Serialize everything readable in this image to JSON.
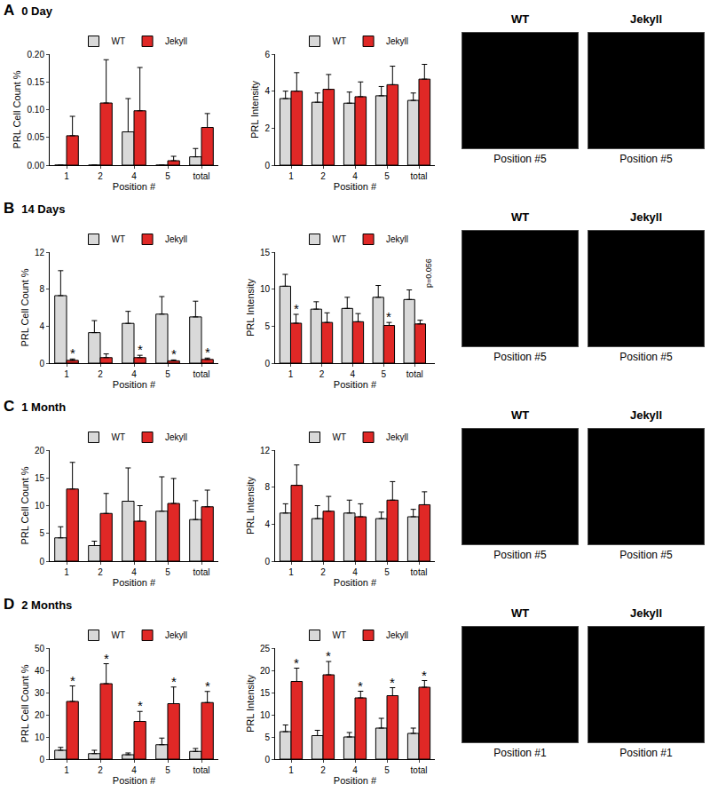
{
  "panels": [
    {
      "label": "A",
      "title": "0 Day",
      "images": [
        {
          "title": "WT",
          "caption": "Position #5"
        },
        {
          "title": "Jekyll",
          "caption": "Position #5"
        }
      ]
    },
    {
      "label": "B",
      "title": "14 Days",
      "images": [
        {
          "title": "WT",
          "caption": "Position #5"
        },
        {
          "title": "Jekyll",
          "caption": "Position #5"
        }
      ]
    },
    {
      "label": "C",
      "title": "1 Month",
      "images": [
        {
          "title": "WT",
          "caption": "Position #5"
        },
        {
          "title": "Jekyll",
          "caption": "Position #5"
        }
      ]
    },
    {
      "label": "D",
      "title": "2 Months",
      "images": [
        {
          "title": "WT",
          "caption": "Position #1"
        },
        {
          "title": "Jekyll",
          "caption": "Position #1"
        }
      ]
    }
  ],
  "chart_data": [
    {
      "type": "bar",
      "x_label": "Position #",
      "y_label": "PRL Cell Count %",
      "categories": [
        "1",
        "2",
        "4",
        "5",
        "total"
      ],
      "legend": "top",
      "ylim": [
        0,
        0.2
      ],
      "yticks": [
        {
          "value": 0,
          "label": "0.00"
        },
        {
          "value": 0.05,
          "label": "0.05"
        },
        {
          "value": 0.1,
          "label": "0.10"
        },
        {
          "value": 0.15,
          "label": "0.15"
        },
        {
          "value": 0.2,
          "label": "0.20"
        }
      ],
      "series": [
        {
          "name": "WT",
          "color": "#d9d9d9",
          "values": [
            0,
            0,
            0.06,
            0,
            0.015
          ],
          "errors": [
            0,
            0,
            0.06,
            0,
            0.015
          ]
        },
        {
          "name": "Jekyll",
          "color": "#e02826",
          "values": [
            0.053,
            0.112,
            0.098,
            0.008,
            0.068
          ],
          "errors": [
            0.035,
            0.078,
            0.078,
            0.008,
            0.025
          ]
        }
      ],
      "annotations": []
    },
    {
      "type": "bar",
      "x_label": "Position #",
      "y_label": "PRL Intensity",
      "categories": [
        "1",
        "2",
        "4",
        "5",
        "total"
      ],
      "legend": "top",
      "ylim": [
        0,
        6
      ],
      "yticks": [
        0,
        2,
        4,
        6
      ],
      "series": [
        {
          "name": "WT",
          "color": "#d9d9d9",
          "values": [
            3.6,
            3.4,
            3.35,
            3.75,
            3.5
          ],
          "errors": [
            0.4,
            0.5,
            0.6,
            0.5,
            0.4
          ]
        },
        {
          "name": "Jekyll",
          "color": "#e02826",
          "values": [
            4.0,
            4.1,
            3.7,
            4.35,
            4.65
          ],
          "errors": [
            1.0,
            0.8,
            0.8,
            1.0,
            0.8
          ]
        }
      ],
      "annotations": []
    },
    {
      "type": "bar",
      "x_label": "Position #",
      "y_label": "PRL Cell Count %",
      "categories": [
        "1",
        "2",
        "4",
        "5",
        "total"
      ],
      "legend": "top",
      "ylim": [
        0,
        12
      ],
      "yticks": [
        0,
        4,
        8,
        12
      ],
      "series": [
        {
          "name": "WT",
          "color": "#d9d9d9",
          "values": [
            7.3,
            3.3,
            4.3,
            5.3,
            5.0
          ],
          "errors": [
            2.7,
            1.3,
            1.3,
            1.9,
            1.7
          ]
        },
        {
          "name": "Jekyll",
          "color": "#e02826",
          "values": [
            0.3,
            0.6,
            0.6,
            0.25,
            0.4
          ],
          "errors": [
            0.15,
            0.4,
            0.25,
            0.1,
            0.15
          ]
        }
      ],
      "annotations": [
        {
          "category": "1",
          "series": "Jekyll",
          "text": "*"
        },
        {
          "category": "4",
          "series": "Jekyll",
          "text": "*"
        },
        {
          "category": "5",
          "series": "Jekyll",
          "text": "*"
        },
        {
          "category": "total",
          "series": "Jekyll",
          "text": "*"
        }
      ]
    },
    {
      "type": "bar",
      "x_label": "Position #",
      "y_label": "PRL Intensity",
      "categories": [
        "1",
        "2",
        "4",
        "5",
        "total"
      ],
      "legend": "top",
      "ylim": [
        0,
        15
      ],
      "yticks": [
        0,
        5,
        10,
        15
      ],
      "series": [
        {
          "name": "WT",
          "color": "#d9d9d9",
          "values": [
            10.4,
            7.3,
            7.4,
            8.9,
            8.6
          ],
          "errors": [
            1.6,
            1.0,
            1.5,
            1.6,
            1.3
          ]
        },
        {
          "name": "Jekyll",
          "color": "#e02826",
          "values": [
            5.4,
            5.5,
            5.6,
            5.1,
            5.3
          ],
          "errors": [
            1.2,
            1.3,
            1.1,
            0.4,
            0.5
          ]
        }
      ],
      "annotations": [
        {
          "category": "1",
          "series": "Jekyll",
          "text": "*"
        },
        {
          "category": "5",
          "series": "Jekyll",
          "text": "*"
        },
        {
          "category": "total",
          "series": "Jekyll",
          "text": "p=0.056"
        }
      ]
    },
    {
      "type": "bar",
      "x_label": "Position #",
      "y_label": "PRL Cell Count %",
      "categories": [
        "1",
        "2",
        "4",
        "5",
        "total"
      ],
      "legend": "top",
      "ylim": [
        0,
        20
      ],
      "yticks": [
        0,
        5,
        10,
        15,
        20
      ],
      "series": [
        {
          "name": "WT",
          "color": "#d9d9d9",
          "values": [
            4.2,
            2.8,
            10.8,
            9.0,
            7.5
          ],
          "errors": [
            2.0,
            0.8,
            6.0,
            6.2,
            3.4
          ]
        },
        {
          "name": "Jekyll",
          "color": "#e02826",
          "values": [
            13.0,
            8.6,
            7.2,
            10.4,
            9.8
          ],
          "errors": [
            4.8,
            3.6,
            2.8,
            4.5,
            3.0
          ]
        }
      ],
      "annotations": []
    },
    {
      "type": "bar",
      "x_label": "Position #",
      "y_label": "PRL Intensity",
      "categories": [
        "1",
        "2",
        "4",
        "5",
        "total"
      ],
      "legend": "top",
      "ylim": [
        0,
        12
      ],
      "yticks": [
        0,
        4,
        8,
        12
      ],
      "series": [
        {
          "name": "WT",
          "color": "#d9d9d9",
          "values": [
            5.2,
            4.6,
            5.2,
            4.6,
            4.8
          ],
          "errors": [
            1.0,
            1.4,
            1.4,
            0.7,
            0.8
          ]
        },
        {
          "name": "Jekyll",
          "color": "#e02826",
          "values": [
            8.2,
            5.4,
            4.8,
            6.6,
            6.1
          ],
          "errors": [
            2.2,
            1.6,
            1.4,
            2.0,
            1.4
          ]
        }
      ],
      "annotations": []
    },
    {
      "type": "bar",
      "x_label": "Position #",
      "y_label": "PRL Cell Count %",
      "categories": [
        "1",
        "2",
        "4",
        "5",
        "total"
      ],
      "legend": "top",
      "ylim": [
        0,
        50
      ],
      "yticks": [
        0,
        10,
        20,
        30,
        40,
        50
      ],
      "series": [
        {
          "name": "WT",
          "color": "#d9d9d9",
          "values": [
            4.0,
            2.5,
            2.0,
            6.5,
            3.5
          ],
          "errors": [
            1.3,
            1.5,
            0.8,
            3.0,
            1.3
          ]
        },
        {
          "name": "Jekyll",
          "color": "#e02826",
          "values": [
            26.0,
            34.0,
            17.0,
            25.0,
            25.5
          ],
          "errors": [
            7.0,
            9.0,
            4.5,
            7.5,
            5.0
          ]
        }
      ],
      "annotations": [
        {
          "category": "1",
          "series": "Jekyll",
          "text": "*"
        },
        {
          "category": "2",
          "series": "Jekyll",
          "text": "*"
        },
        {
          "category": "4",
          "series": "Jekyll",
          "text": "*"
        },
        {
          "category": "5",
          "series": "Jekyll",
          "text": "*"
        },
        {
          "category": "total",
          "series": "Jekyll",
          "text": "*"
        }
      ]
    },
    {
      "type": "bar",
      "x_label": "Position #",
      "y_label": "PRL Intensity",
      "categories": [
        "1",
        "2",
        "4",
        "5",
        "total"
      ],
      "legend": "top",
      "ylim": [
        0,
        25
      ],
      "yticks": [
        0,
        5,
        10,
        15,
        20,
        25
      ],
      "series": [
        {
          "name": "WT",
          "color": "#d9d9d9",
          "values": [
            6.2,
            5.3,
            5.0,
            7.0,
            5.8
          ],
          "errors": [
            1.5,
            1.2,
            1.0,
            2.2,
            1.2
          ]
        },
        {
          "name": "Jekyll",
          "color": "#e02826",
          "values": [
            17.5,
            19.0,
            13.8,
            14.3,
            16.2
          ],
          "errors": [
            3.0,
            3.0,
            1.5,
            1.8,
            1.5
          ]
        }
      ],
      "annotations": [
        {
          "category": "1",
          "series": "Jekyll",
          "text": "*"
        },
        {
          "category": "2",
          "series": "Jekyll",
          "text": "*"
        },
        {
          "category": "4",
          "series": "Jekyll",
          "text": "*"
        },
        {
          "category": "5",
          "series": "Jekyll",
          "text": "*"
        },
        {
          "category": "total",
          "series": "Jekyll",
          "text": "*"
        }
      ]
    }
  ]
}
